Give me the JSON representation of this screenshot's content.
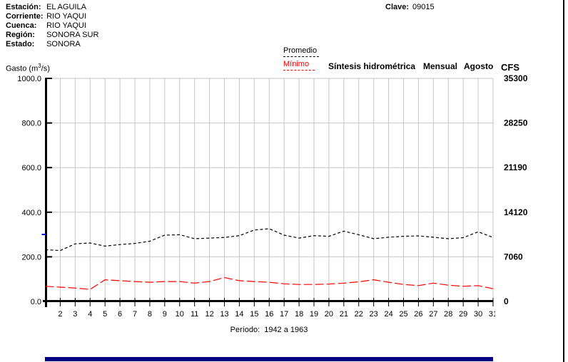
{
  "header": {
    "fields": [
      {
        "label": "Estación:",
        "value": "EL AGUILA"
      },
      {
        "label": "Corriente:",
        "value": "RIO YAQUI"
      },
      {
        "label": "Cuenca:",
        "value": "RIO YAQUI"
      },
      {
        "label": "Región:",
        "value": "SONORA SUR"
      },
      {
        "label": "Estado:",
        "value": "SONORA"
      }
    ],
    "clave_label": "Clave:",
    "clave_value": "09015"
  },
  "legend": {
    "promedio": "Promedio",
    "minimo": "Mínimo",
    "title": "Síntesis hidrométrica",
    "period_type": "Mensual",
    "month": "Agosto",
    "right_axis_unit": "CFS"
  },
  "axis_labels": {
    "left_prefix": "Gasto (m",
    "left_sup": "3",
    "left_suffix": "/s)"
  },
  "footer": {
    "period_label": "Período:",
    "period_value": "1942 a 1963"
  },
  "colors": {
    "promedio": "#000000",
    "minimo": "#ff0000",
    "grid": "#c6c6c6",
    "axis": "#000000",
    "blue_marker": "#0000ff",
    "bottom_bar": "#000080"
  },
  "chart_data": {
    "type": "line",
    "title": "Síntesis hidrométrica Mensual Agosto",
    "ylabel": "Gasto (m3/s)",
    "y2label": "CFS",
    "x_range": [
      1,
      31
    ],
    "ylim": [
      0,
      1000
    ],
    "y2lim": [
      0,
      35300
    ],
    "grid": true,
    "legend_position": "top",
    "x": [
      1,
      2,
      3,
      4,
      5,
      6,
      7,
      8,
      9,
      10,
      11,
      12,
      13,
      14,
      15,
      16,
      17,
      18,
      19,
      20,
      21,
      22,
      23,
      24,
      25,
      26,
      27,
      28,
      29,
      30,
      31
    ],
    "x_tick_labels": [
      "2",
      "3",
      "4",
      "5",
      "6",
      "7",
      "8",
      "9",
      "10",
      "11",
      "12",
      "13",
      "14",
      "15",
      "16",
      "17",
      "18",
      "19",
      "20",
      "21",
      "22",
      "23",
      "24",
      "25",
      "26",
      "27",
      "28",
      "29",
      "30",
      "31"
    ],
    "left_axis": {
      "ticks": [
        "0.0",
        "200.0",
        "400.0",
        "600.0",
        "800.0",
        "1000.0"
      ],
      "range": [
        0,
        1000
      ]
    },
    "right_axis": {
      "ticks": [
        "0",
        "7060",
        "14120",
        "21190",
        "28250",
        "35300"
      ]
    },
    "series": [
      {
        "name": "Promedio",
        "color": "#000000",
        "dash": "4,3",
        "values": [
          232,
          228,
          258,
          262,
          248,
          255,
          260,
          270,
          297,
          299,
          281,
          284,
          287,
          295,
          320,
          326,
          297,
          284,
          295,
          292,
          315,
          299,
          281,
          288,
          292,
          294,
          288,
          281,
          286,
          312,
          287
        ]
      },
      {
        "name": "Mínimo",
        "color": "#ff0000",
        "dash": "12,4",
        "values": [
          68,
          64,
          60,
          54,
          97,
          93,
          89,
          86,
          89,
          89,
          82,
          89,
          107,
          93,
          89,
          86,
          79,
          76,
          76,
          78,
          82,
          88,
          97,
          86,
          76,
          71,
          82,
          73,
          68,
          71,
          57
        ]
      }
    ]
  }
}
